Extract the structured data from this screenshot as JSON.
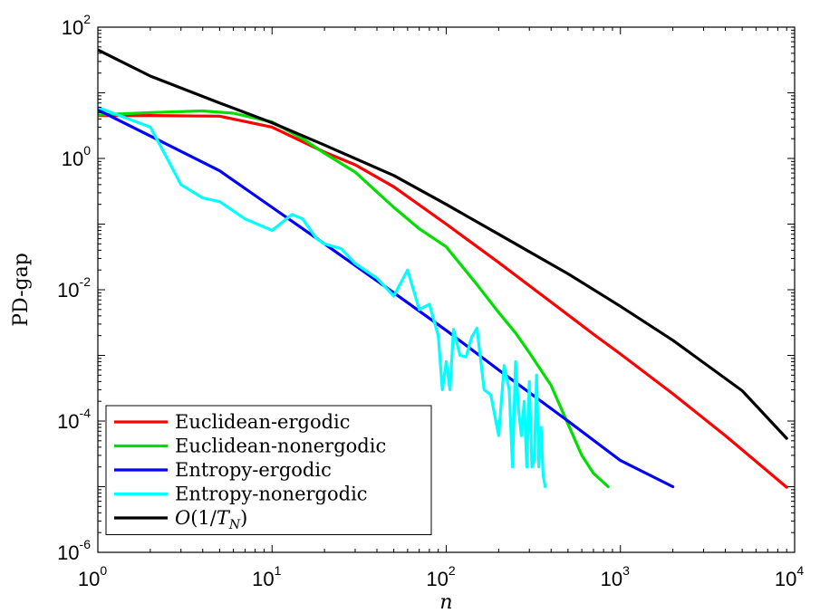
{
  "chart_data": {
    "type": "line",
    "xlabel": "n",
    "ylabel": "PD-gap",
    "xscale": "log",
    "yscale": "log",
    "xlim": [
      1,
      10000
    ],
    "ylim": [
      1e-06,
      100
    ],
    "x_ticks": [
      {
        "base": "10",
        "exp": "0",
        "value": 1
      },
      {
        "base": "10",
        "exp": "1",
        "value": 10
      },
      {
        "base": "10",
        "exp": "2",
        "value": 100
      },
      {
        "base": "10",
        "exp": "3",
        "value": 1000
      },
      {
        "base": "10",
        "exp": "4",
        "value": 10000
      }
    ],
    "y_ticks": [
      {
        "base": "10",
        "exp": "-6",
        "value": 1e-06
      },
      {
        "base": "10",
        "exp": "-4",
        "value": 0.0001
      },
      {
        "base": "10",
        "exp": "-2",
        "value": 0.01
      },
      {
        "base": "10",
        "exp": "0",
        "value": 1
      },
      {
        "base": "10",
        "exp": "2",
        "value": 100
      }
    ],
    "grid": false,
    "legend_position": "bottom-left",
    "series": [
      {
        "name": "Euclidean-ergodic",
        "color": "#ff0000",
        "x": [
          1,
          2,
          5,
          10,
          20,
          30,
          50,
          100,
          200,
          400,
          700,
          1000,
          2000,
          4000,
          9000
        ],
        "y": [
          4.5,
          4.5,
          4.4,
          3.0,
          1.25,
          0.8,
          0.37,
          0.1,
          0.026,
          0.0065,
          0.0021,
          0.00105,
          0.00026,
          6e-05,
          9.8e-06
        ]
      },
      {
        "name": "Euclidean-nonergodic",
        "color": "#00dd00",
        "x": [
          1,
          2,
          4,
          6,
          10,
          15,
          20,
          30,
          50,
          70,
          100,
          150,
          200,
          250,
          300,
          400,
          500,
          600,
          700,
          850
        ],
        "y": [
          4.6,
          5.0,
          5.3,
          4.9,
          3.6,
          2.0,
          1.2,
          0.62,
          0.18,
          0.085,
          0.045,
          0.012,
          0.0045,
          0.0022,
          0.0011,
          0.00035,
          9e-05,
          3e-05,
          1.6e-05,
          1e-05
        ]
      },
      {
        "name": "Entropy-ergodic",
        "color": "#0000ff",
        "x": [
          1,
          2,
          5,
          10,
          20,
          50,
          100,
          200,
          500,
          1000,
          2000
        ],
        "y": [
          5.5,
          2.2,
          0.65,
          0.18,
          0.05,
          0.009,
          0.0024,
          0.0006,
          0.0001,
          2.5e-05,
          1e-05
        ]
      },
      {
        "name": "Entropy-nonergodic",
        "color": "#00ffff",
        "x": [
          1,
          1.5,
          2,
          2.5,
          3,
          4,
          5,
          7,
          10,
          13,
          15,
          18,
          20,
          25,
          30,
          40,
          50,
          60,
          70,
          80,
          90,
          95,
          100,
          105,
          110,
          120,
          130,
          140,
          150,
          165,
          180,
          200,
          215,
          230,
          240,
          250,
          260,
          270,
          280,
          290,
          300,
          310,
          320,
          330,
          340,
          350,
          360,
          370
        ],
        "y": [
          6.0,
          4.0,
          3.0,
          1.0,
          0.4,
          0.25,
          0.22,
          0.12,
          0.08,
          0.14,
          0.12,
          0.06,
          0.05,
          0.042,
          0.025,
          0.015,
          0.008,
          0.02,
          0.005,
          0.006,
          0.002,
          0.0003,
          0.0008,
          0.0003,
          0.0025,
          0.001,
          0.00095,
          0.0019,
          0.0026,
          0.0003,
          0.00025,
          6e-05,
          0.0007,
          0.0003,
          2e-05,
          0.0008,
          0.00015,
          6e-05,
          0.0002,
          2e-05,
          0.0004,
          2e-05,
          2.5e-05,
          0.0005,
          2e-05,
          8e-05,
          1.5e-05,
          1e-05
        ]
      },
      {
        "name": "O(1/T_N)",
        "color": "#000000",
        "x": [
          1,
          2,
          5,
          10,
          20,
          50,
          100,
          200,
          500,
          1000,
          2000,
          5000,
          9000
        ],
        "y": [
          45,
          18,
          7.0,
          3.5,
          1.6,
          0.55,
          0.2,
          0.07,
          0.0175,
          0.0056,
          0.0017,
          0.00029,
          5.45e-05
        ]
      }
    ],
    "legend": [
      {
        "name": "Euclidean-ergodic",
        "color": "#ff0000"
      },
      {
        "name": "Euclidean-nonergodic",
        "color": "#00dd00"
      },
      {
        "name": "Entropy-ergodic",
        "color": "#0000ff"
      },
      {
        "name": "Entropy-nonergodic",
        "color": "#00ffff"
      },
      {
        "name": "O(1/T_N)",
        "color": "#000000"
      }
    ]
  }
}
